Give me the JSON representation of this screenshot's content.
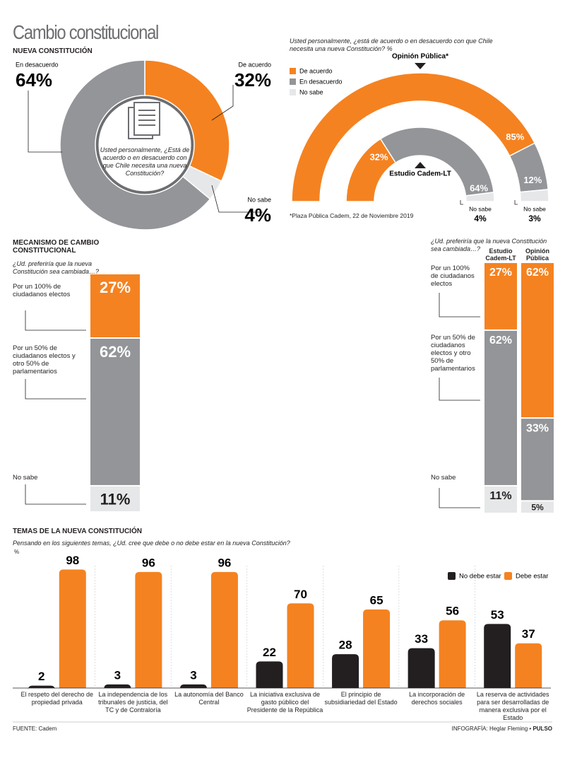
{
  "title": "Cambio constitucional",
  "chart_data": [
    {
      "type": "donut",
      "title": "NUEVA CONSTITUCIÓN",
      "center_text": "Usted personalmente, ¿Está de acuerdo o en desacuerdo con que Chile necesita una nueva Constitución?",
      "categories": [
        "De acuerdo",
        "No sabe",
        "En desacuerdo"
      ],
      "values": [
        32,
        4,
        64
      ],
      "value_labels": [
        "32%",
        "4%",
        "64%"
      ],
      "colors": [
        "#f58220",
        "#e6e7e8",
        "#939598"
      ]
    },
    {
      "type": "semi_donut",
      "title": "Usted personalmente, ¿está de acuerdo o en desacuerdo con que Chile necesita una nueva Constitución? %",
      "categories": [
        "De acuerdo",
        "En desacuerdo",
        "No sabe"
      ],
      "colors": [
        "#f58220",
        "#939598",
        "#e6e7e8"
      ],
      "series": [
        {
          "name": "Opinión Pública*",
          "values": [
            85,
            12,
            3
          ],
          "value_labels": [
            "85%",
            "12%",
            "3%"
          ]
        },
        {
          "name": "Estudio Cadem-LT",
          "values": [
            32,
            64,
            4
          ],
          "value_labels": [
            "32%",
            "64%",
            "4%"
          ]
        }
      ],
      "note": "*Plaza Pública Cadem, 22 de Noviembre 2019"
    },
    {
      "type": "stacked_bar",
      "title": "MECANISMO DE CAMBIO CONSTITUCIONAL",
      "subtitle": "¿Ud. preferiría que la nueva Constitución sea cambiada…?",
      "categories": [
        "Por un 100% de ciudadanos electos",
        "Por un 50% de ciudadanos electos y otro 50% de parlamentarios",
        "No sabe"
      ],
      "values": [
        27,
        62,
        11
      ],
      "value_labels": [
        "27%",
        "62%",
        "11%"
      ],
      "colors": [
        "#f58220",
        "#939598",
        "#e6e7e8"
      ]
    },
    {
      "type": "stacked_columns",
      "subtitle": "¿Ud. preferiría que la nueva Constitución sea cambiada…?",
      "categories": [
        "Por un 100% de ciudadanos electos",
        "Por un 50% de ciudadanos electos y otro 50% de parlamentarios",
        "No sabe"
      ],
      "colors": [
        "#f58220",
        "#939598",
        "#e6e7e8"
      ],
      "series": [
        {
          "name": "Estudio Cadem-LT",
          "values": [
            27,
            62,
            11
          ],
          "value_labels": [
            "27%",
            "62%",
            "11%"
          ]
        },
        {
          "name": "Opinión Pública",
          "values": [
            62,
            33,
            5
          ],
          "value_labels": [
            "62%",
            "33%",
            "5%"
          ]
        }
      ]
    },
    {
      "type": "grouped_bar",
      "title": "TEMAS DE LA NUEVA CONSTITUCIÓN",
      "subtitle": "Pensando en los siguientes temas, ¿Ud. cree que debe o no debe estar en la nueva Constitución?",
      "ylabel": "%",
      "categories": [
        "El respeto del derecho de propiedad privada",
        "La independencia de los tribunales de justicia, del TC y de Contraloría",
        "La autonomía del Banco Central",
        "La iniciativa exclusiva de gasto público del Presidente de la República",
        "El principio de subsidiariedad del Estado",
        "La incorporación de derechos sociales",
        "La reserva de actividades para ser desarrolladas de manera exclusiva por el Estado"
      ],
      "series": [
        {
          "name": "No debe estar",
          "color": "#231f20",
          "values": [
            2,
            3,
            3,
            22,
            28,
            33,
            53
          ]
        },
        {
          "name": "Debe estar",
          "color": "#f58220",
          "values": [
            98,
            96,
            96,
            70,
            65,
            56,
            37
          ]
        }
      ],
      "ylim": [
        0,
        100
      ]
    }
  ],
  "source": "FUENTE: Cadem",
  "credit": "INFOGRAFÍA: Heglar Fleming",
  "brand": "PULSO"
}
